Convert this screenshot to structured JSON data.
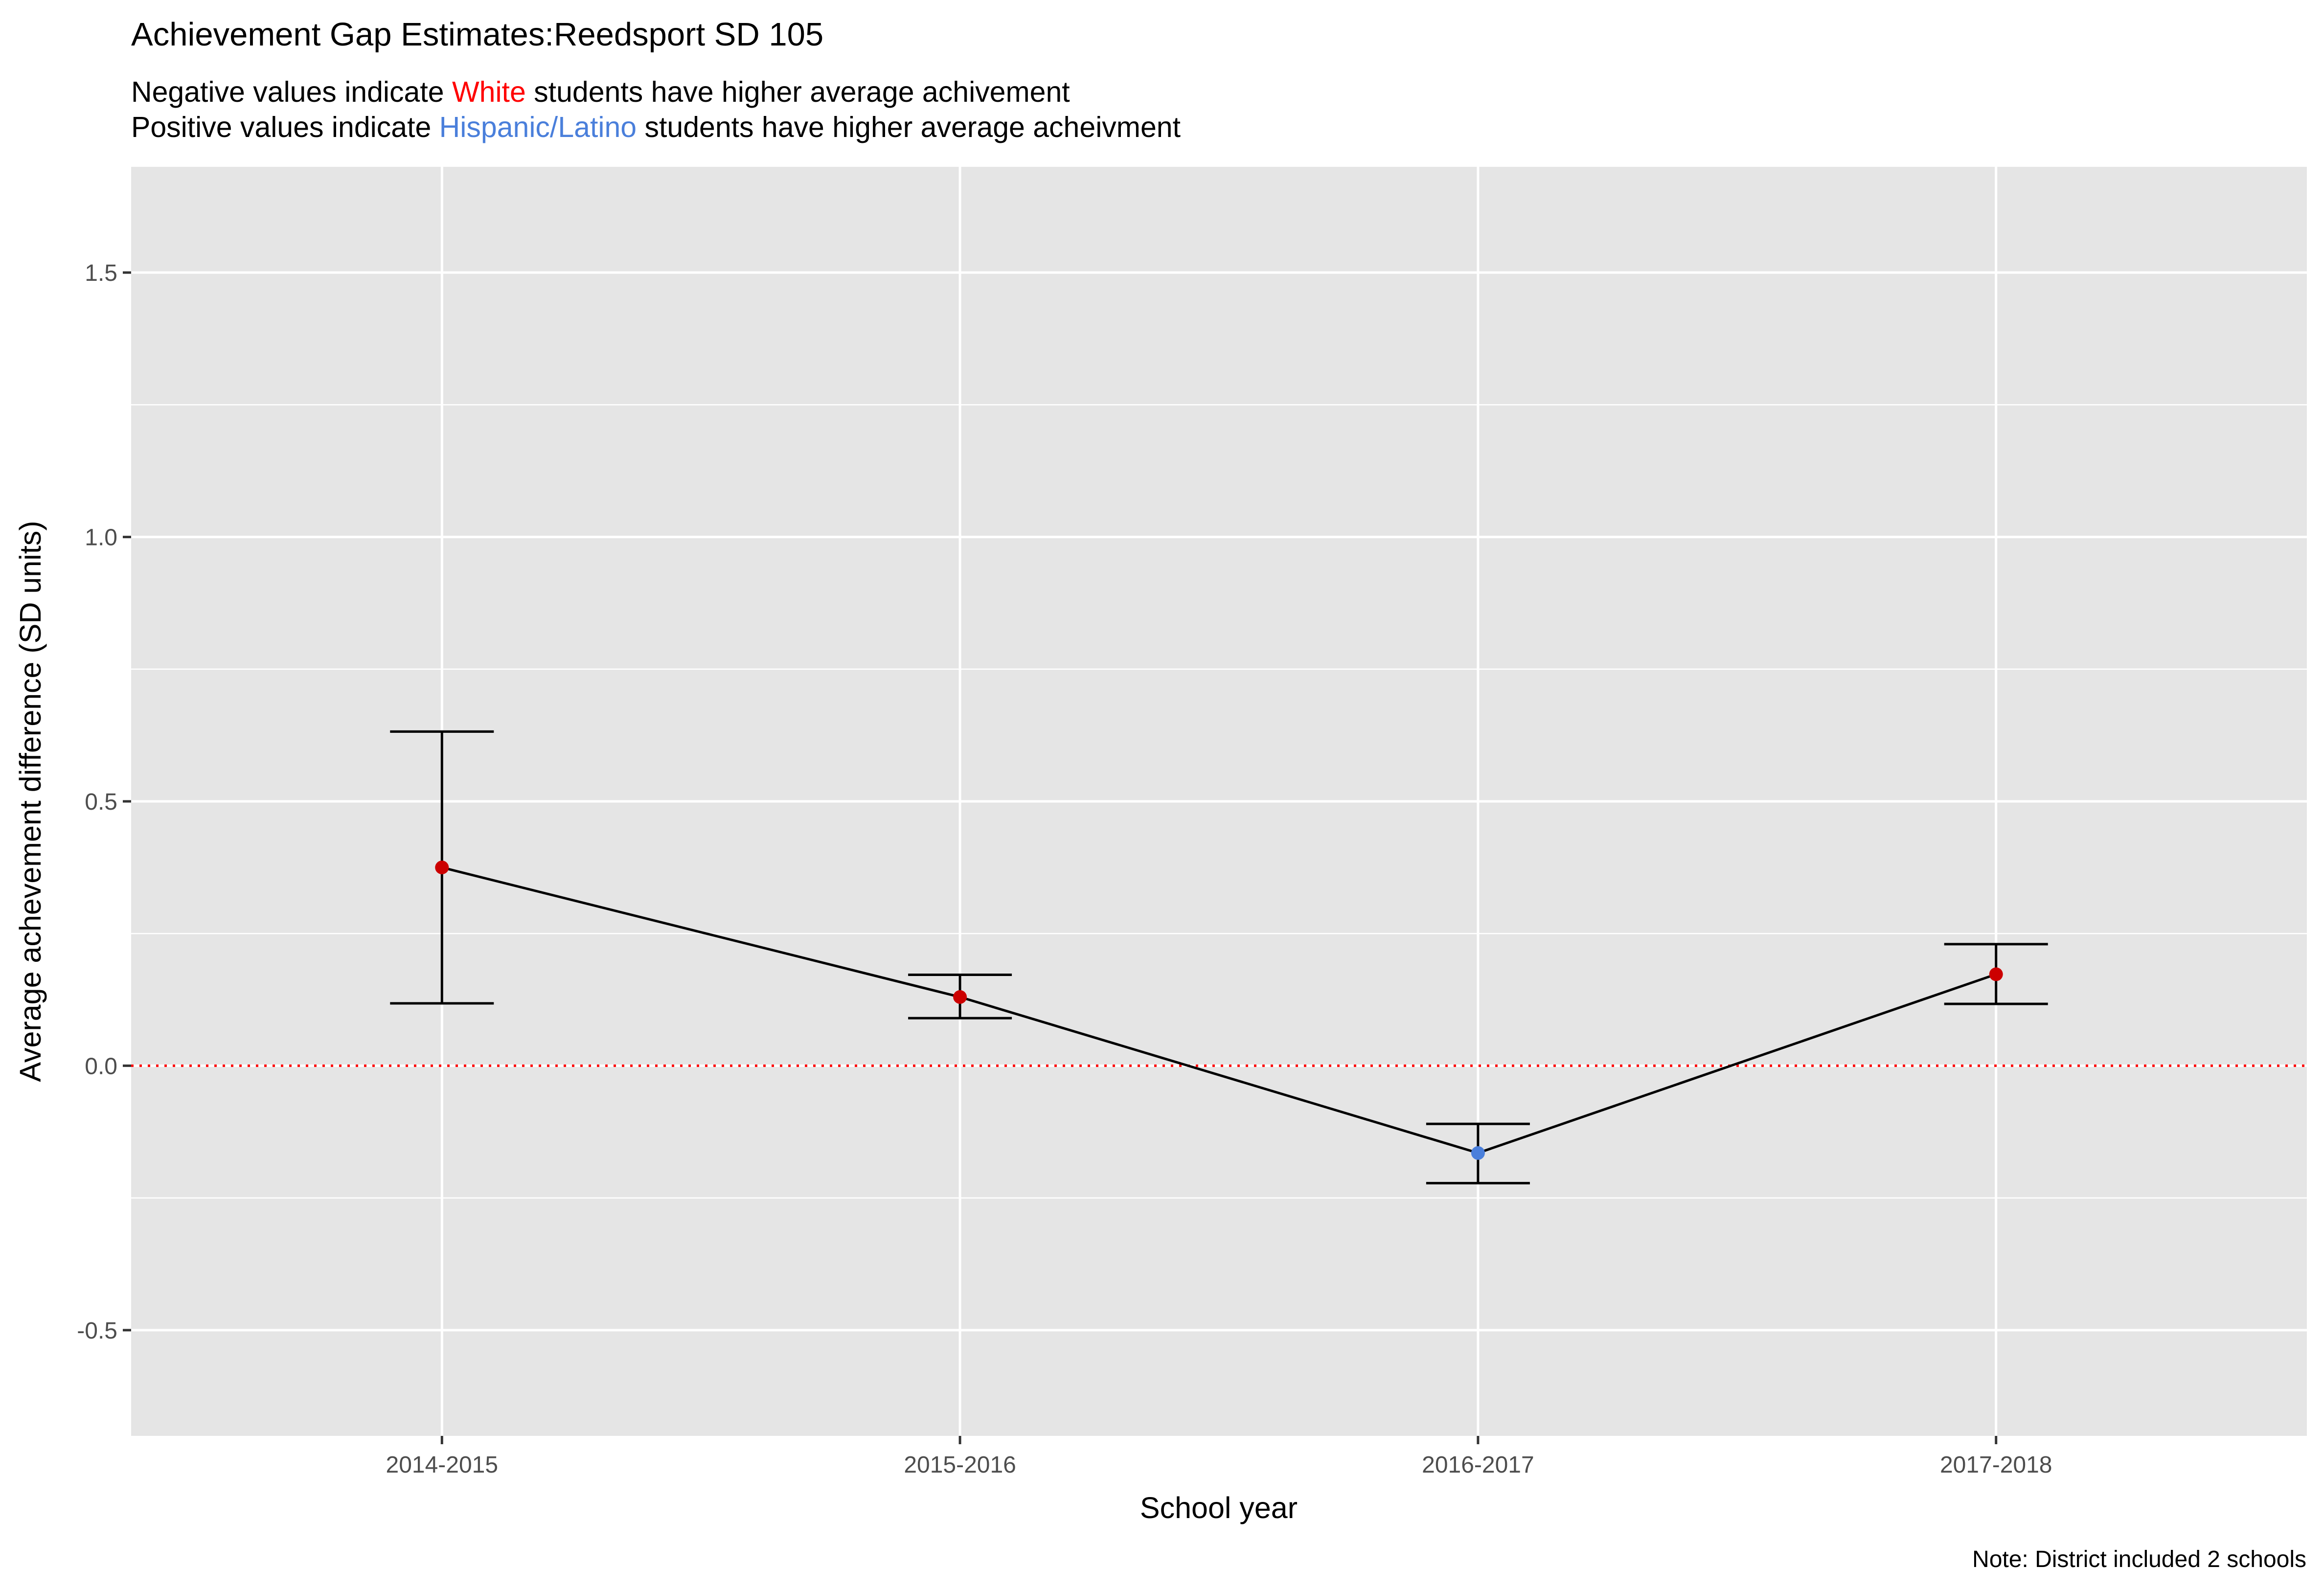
{
  "chart_data": {
    "type": "line",
    "title": "Achievement Gap Estimates:Reedsport SD 105",
    "subtitle_lines": [
      {
        "before": "Negative values indicate ",
        "highlight": "White",
        "after": " students have higher average achivement",
        "highlight_color": "#ff0000"
      },
      {
        "before": "Positive values indicate ",
        "highlight": "Hispanic/Latino",
        "after": " students have higher average acheivment",
        "highlight_color": "#4a7fdb"
      }
    ],
    "xlabel": "School year",
    "ylabel": "Average achevement difference (SD units)",
    "caption": "Note: District included 2 schools",
    "categories": [
      "2014-2015",
      "2015-2016",
      "2016-2017",
      "2017-2018"
    ],
    "series": [
      {
        "values": [
          0.375,
          0.13,
          -0.165,
          0.173
        ],
        "lower": [
          0.118,
          0.09,
          -0.222,
          0.117
        ],
        "upper": [
          0.632,
          0.172,
          -0.11,
          0.23
        ],
        "point_colors": [
          "#cc0000",
          "#cc0000",
          "#4a7fdb",
          "#cc0000"
        ]
      }
    ],
    "ylim": [
      -0.7,
      1.7
    ],
    "yticks": [
      -0.5,
      0.0,
      0.5,
      1.0,
      1.5
    ],
    "ytick_labels": [
      "-0.5",
      "0.0",
      "0.5",
      "1.0",
      "1.5"
    ],
    "reference_line": {
      "y": 0,
      "color": "#ff0000",
      "style": "dotted"
    },
    "grid": true,
    "panel_color": "#e5e5e5",
    "gridline_color": "#ffffff"
  }
}
